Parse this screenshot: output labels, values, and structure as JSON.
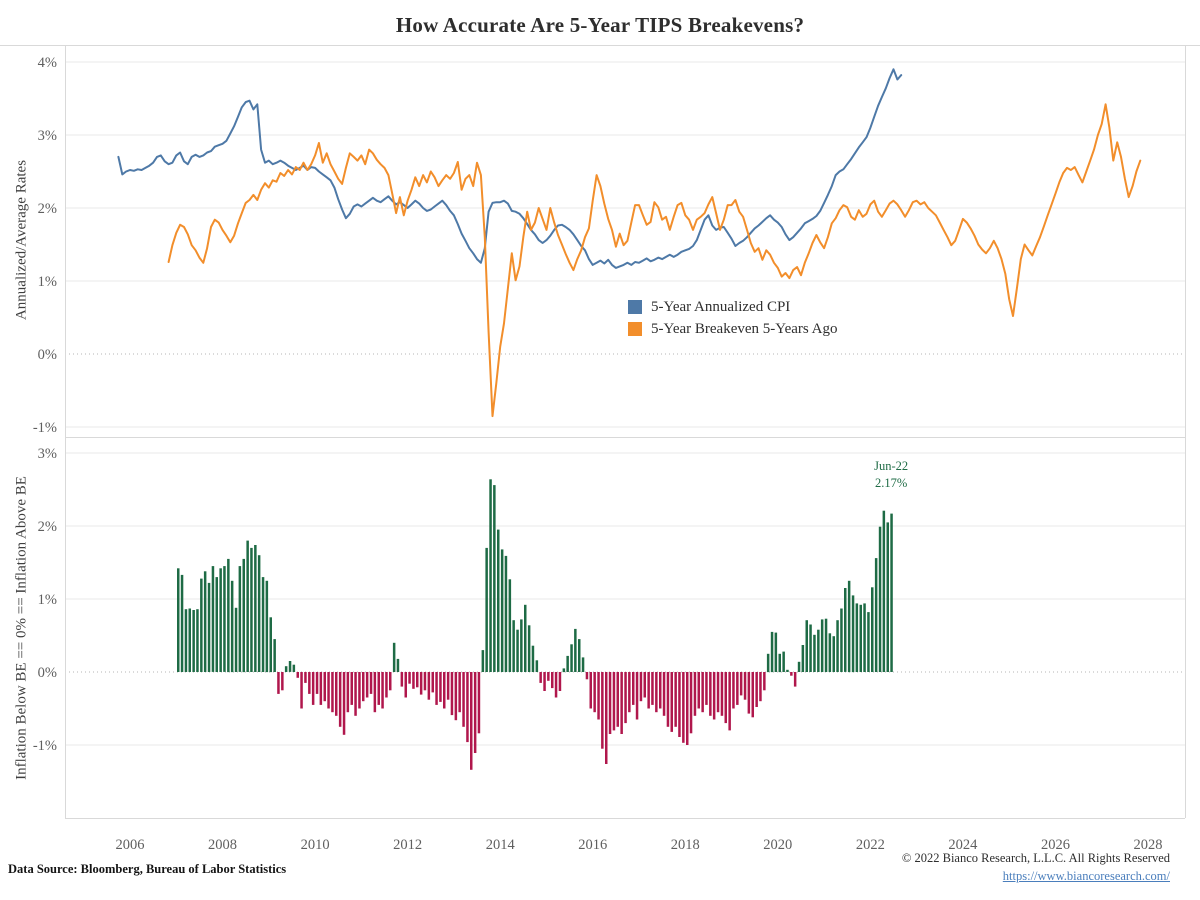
{
  "title": "How Accurate Are 5-Year TIPS Breakevens?",
  "footer": {
    "source": "Data Source: Bloomberg, Bureau of Labor Statistics",
    "copyright": "© 2022 Bianco Research, L.L.C. All Rights Reserved",
    "link": "https://www.biancoresearch.com/"
  },
  "colors": {
    "grid": "#eaeaea",
    "zero_line": "#b5b5b5",
    "border": "#d9d9d9",
    "tick_text": "#5f5f5f"
  },
  "chart_data": [
    {
      "type": "line",
      "panel": "top",
      "ylabel": "Annualized/Average Rates",
      "xlim": [
        2004.6,
        2028.8
      ],
      "ylim": [
        -1.15,
        4.23
      ],
      "yticks": [
        4,
        3,
        2,
        1,
        0,
        -1
      ],
      "ytick_labels": [
        "4%",
        "3%",
        "2%",
        "1%",
        "0%",
        "-1%"
      ],
      "xticks": [
        2006,
        2008,
        2010,
        2012,
        2014,
        2016,
        2018,
        2020,
        2022,
        2024,
        2026,
        2028
      ],
      "grid": true,
      "zero_line_style": "dotted",
      "legend_position": "inside-center",
      "series": [
        {
          "name": "5-Year Annualized CPI",
          "color": "#4e79a7",
          "start_year": 2005,
          "start_month": 10,
          "values": [
            2.7,
            2.46,
            2.5,
            2.52,
            2.51,
            2.53,
            2.52,
            2.55,
            2.58,
            2.62,
            2.7,
            2.72,
            2.64,
            2.6,
            2.62,
            2.72,
            2.76,
            2.64,
            2.6,
            2.7,
            2.73,
            2.7,
            2.72,
            2.76,
            2.78,
            2.84,
            2.86,
            2.88,
            2.92,
            3.02,
            3.12,
            3.25,
            3.38,
            3.45,
            3.47,
            3.35,
            3.42,
            2.8,
            2.62,
            2.65,
            2.6,
            2.62,
            2.65,
            2.62,
            2.58,
            2.55,
            2.52,
            2.55,
            2.58,
            2.52,
            2.56,
            2.55,
            2.5,
            2.46,
            2.42,
            2.38,
            2.28,
            2.12,
            1.98,
            1.86,
            1.92,
            2.02,
            2.05,
            2.02,
            2.06,
            2.1,
            2.14,
            2.1,
            2.08,
            2.12,
            2.16,
            2.1,
            2.05,
            2.08,
            2.04,
            2.0,
            2.05,
            2.1,
            2.06,
            2.0,
            1.96,
            1.98,
            2.02,
            2.06,
            2.1,
            2.04,
            1.96,
            1.9,
            1.78,
            1.65,
            1.55,
            1.45,
            1.38,
            1.3,
            1.25,
            1.45,
            1.95,
            2.07,
            2.08,
            2.08,
            2.1,
            2.06,
            1.96,
            1.95,
            1.92,
            1.86,
            1.78,
            1.7,
            1.64,
            1.56,
            1.52,
            1.56,
            1.62,
            1.7,
            1.76,
            1.77,
            1.74,
            1.7,
            1.64,
            1.56,
            1.48,
            1.42,
            1.3,
            1.22,
            1.25,
            1.28,
            1.24,
            1.29,
            1.22,
            1.18,
            1.2,
            1.22,
            1.25,
            1.22,
            1.26,
            1.25,
            1.28,
            1.31,
            1.27,
            1.29,
            1.32,
            1.3,
            1.33,
            1.36,
            1.33,
            1.36,
            1.4,
            1.42,
            1.44,
            1.48,
            1.56,
            1.7,
            1.84,
            1.9,
            1.76,
            1.7,
            1.73,
            1.74,
            1.66,
            1.58,
            1.48,
            1.52,
            1.55,
            1.6,
            1.66,
            1.72,
            1.76,
            1.81,
            1.86,
            1.9,
            1.84,
            1.8,
            1.74,
            1.64,
            1.56,
            1.6,
            1.66,
            1.72,
            1.79,
            1.82,
            1.85,
            1.89,
            1.96,
            2.07,
            2.18,
            2.3,
            2.45,
            2.5,
            2.53,
            2.6,
            2.67,
            2.75,
            2.83,
            2.9,
            2.97,
            3.1,
            3.25,
            3.4,
            3.52,
            3.64,
            3.78,
            3.9,
            3.76,
            3.82
          ]
        },
        {
          "name": "5-Year Breakeven 5-Years Ago",
          "color": "#f28e2b",
          "start_year": 2006,
          "start_month": 11,
          "values": [
            1.26,
            1.49,
            1.66,
            1.77,
            1.74,
            1.64,
            1.49,
            1.42,
            1.32,
            1.25,
            1.45,
            1.74,
            1.84,
            1.8,
            1.7,
            1.62,
            1.53,
            1.62,
            1.79,
            1.93,
            2.07,
            2.11,
            2.18,
            2.11,
            2.25,
            2.34,
            2.28,
            2.38,
            2.36,
            2.48,
            2.44,
            2.52,
            2.46,
            2.56,
            2.52,
            2.62,
            2.52,
            2.6,
            2.72,
            2.89,
            2.62,
            2.75,
            2.6,
            2.5,
            2.4,
            2.33,
            2.55,
            2.75,
            2.7,
            2.65,
            2.72,
            2.6,
            2.8,
            2.75,
            2.66,
            2.6,
            2.55,
            2.45,
            2.2,
            1.93,
            2.15,
            1.9,
            2.1,
            2.25,
            2.42,
            2.3,
            2.45,
            2.35,
            2.5,
            2.42,
            2.3,
            2.38,
            2.45,
            2.4,
            2.48,
            2.63,
            2.25,
            2.4,
            2.45,
            2.3,
            2.62,
            2.45,
            1.6,
            0.3,
            -0.85,
            -0.4,
            0.1,
            0.42,
            0.9,
            1.38,
            1.01,
            1.2,
            1.6,
            1.95,
            1.7,
            1.8,
            2.0,
            1.85,
            1.7,
            2.0,
            1.8,
            1.63,
            1.5,
            1.37,
            1.25,
            1.15,
            1.3,
            1.42,
            1.6,
            1.72,
            2.1,
            2.45,
            2.3,
            2.06,
            1.85,
            1.7,
            1.47,
            1.65,
            1.49,
            1.55,
            1.8,
            2.04,
            2.04,
            1.9,
            1.77,
            1.81,
            2.08,
            2.01,
            1.84,
            1.88,
            1.7,
            1.88,
            2.04,
            2.07,
            1.9,
            1.84,
            1.7,
            1.84,
            1.88,
            1.93,
            2.05,
            2.15,
            1.93,
            1.7,
            1.84,
            2.04,
            2.04,
            2.11,
            1.95,
            1.88,
            1.7,
            1.52,
            1.4,
            1.45,
            1.29,
            1.42,
            1.36,
            1.25,
            1.18,
            1.06,
            1.11,
            1.04,
            1.15,
            1.19,
            1.08,
            1.25,
            1.38,
            1.52,
            1.63,
            1.53,
            1.45,
            1.6,
            1.79,
            1.86,
            1.97,
            2.04,
            2.01,
            1.88,
            1.84,
            1.97,
            1.88,
            1.92,
            2.05,
            2.1,
            1.95,
            1.88,
            1.97,
            2.06,
            2.1,
            2.05,
            1.97,
            1.88,
            1.97,
            2.08,
            2.1,
            2.05,
            2.08,
            2.0,
            1.95,
            1.9,
            1.8,
            1.7,
            1.6,
            1.49,
            1.55,
            1.7,
            1.85,
            1.8,
            1.72,
            1.62,
            1.5,
            1.43,
            1.38,
            1.45,
            1.55,
            1.45,
            1.3,
            1.1,
            0.75,
            0.52,
            0.9,
            1.3,
            1.5,
            1.42,
            1.35,
            1.48,
            1.6,
            1.75,
            1.9,
            2.05,
            2.2,
            2.35,
            2.48,
            2.55,
            2.52,
            2.56,
            2.45,
            2.35,
            2.5,
            2.65,
            2.8,
            3.0,
            3.15,
            3.42,
            3.1,
            2.65,
            2.9,
            2.7,
            2.4,
            2.15,
            2.3,
            2.5,
            2.65
          ]
        }
      ]
    },
    {
      "type": "bar",
      "panel": "bottom",
      "ylabel": "Inflation Below BE == 0% == Inflation Above BE",
      "ylim": [
        -2.0,
        3.22
      ],
      "yticks": [
        3,
        2,
        1,
        0,
        -1
      ],
      "ytick_labels": [
        "3%",
        "2%",
        "1%",
        "0%",
        "-1%"
      ],
      "grid": true,
      "zero_line_style": "dotted",
      "positive_color": "#1e6b45",
      "negative_color": "#b0174c",
      "start_year": 2007,
      "start_month": 1,
      "values": [
        1.42,
        1.33,
        0.86,
        0.87,
        0.85,
        0.86,
        1.28,
        1.38,
        1.22,
        1.45,
        1.3,
        1.42,
        1.45,
        1.55,
        1.25,
        0.88,
        1.45,
        1.55,
        1.8,
        1.7,
        1.74,
        1.6,
        1.3,
        1.25,
        0.75,
        0.45,
        -0.3,
        -0.25,
        0.08,
        0.15,
        0.1,
        -0.08,
        -0.5,
        -0.15,
        -0.3,
        -0.45,
        -0.3,
        -0.45,
        -0.4,
        -0.5,
        -0.55,
        -0.6,
        -0.75,
        -0.86,
        -0.55,
        -0.45,
        -0.6,
        -0.5,
        -0.4,
        -0.35,
        -0.3,
        -0.55,
        -0.45,
        -0.5,
        -0.35,
        -0.25,
        0.4,
        0.18,
        -0.2,
        -0.35,
        -0.16,
        -0.23,
        -0.21,
        -0.31,
        -0.25,
        -0.38,
        -0.28,
        -0.45,
        -0.41,
        -0.5,
        -0.38,
        -0.59,
        -0.66,
        -0.55,
        -0.75,
        -0.96,
        -1.34,
        -1.11,
        -0.84,
        0.3,
        1.7,
        2.64,
        2.56,
        1.95,
        1.68,
        1.59,
        1.27,
        0.71,
        0.58,
        0.72,
        0.92,
        0.64,
        0.36,
        0.16,
        -0.15,
        -0.26,
        -0.12,
        -0.22,
        -0.35,
        -0.26,
        0.05,
        0.22,
        0.38,
        0.59,
        0.45,
        0.2,
        -0.1,
        -0.5,
        -0.55,
        -0.65,
        -1.05,
        -1.26,
        -0.85,
        -0.8,
        -0.75,
        -0.85,
        -0.7,
        -0.55,
        -0.45,
        -0.65,
        -0.4,
        -0.35,
        -0.5,
        -0.45,
        -0.55,
        -0.5,
        -0.6,
        -0.75,
        -0.82,
        -0.75,
        -0.89,
        -0.97,
        -1.0,
        -0.84,
        -0.6,
        -0.5,
        -0.55,
        -0.45,
        -0.6,
        -0.65,
        -0.55,
        -0.6,
        -0.7,
        -0.8,
        -0.5,
        -0.45,
        -0.32,
        -0.38,
        -0.57,
        -0.62,
        -0.48,
        -0.4,
        -0.25,
        0.25,
        0.55,
        0.54,
        0.25,
        0.28,
        0.03,
        -0.05,
        -0.2,
        0.14,
        0.37,
        0.71,
        0.65,
        0.51,
        0.58,
        0.72,
        0.73,
        0.53,
        0.49,
        0.71,
        0.87,
        1.15,
        1.25,
        1.05,
        0.94,
        0.92,
        0.94,
        0.82,
        1.16,
        1.56,
        1.99,
        2.21,
        2.05,
        2.17
      ],
      "annotation": {
        "label": "Jun-22",
        "value": "2.17%",
        "x": 2022.45,
        "y": 2.66,
        "color": "#1e6b45"
      }
    }
  ]
}
